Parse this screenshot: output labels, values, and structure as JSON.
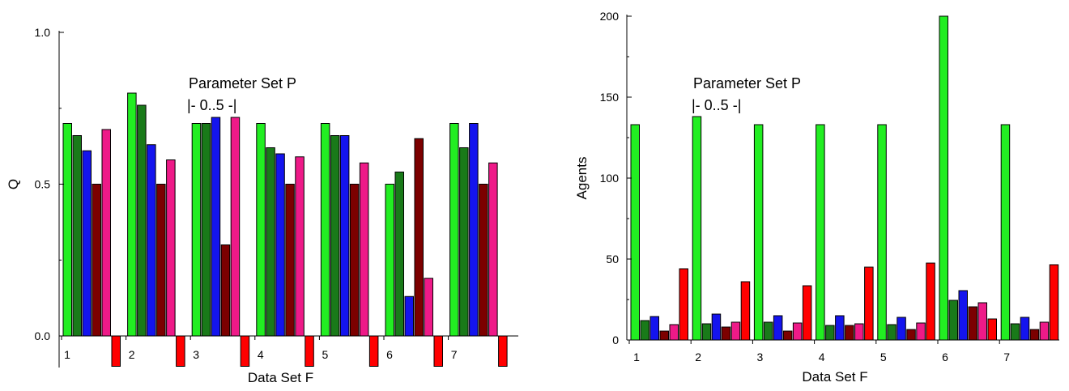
{
  "colors": {
    "light_green": "#22ee22",
    "dark_green": "#197a19",
    "blue": "#1414ee",
    "dark_red": "#7c0000",
    "pink": "#ee1a88",
    "red": "#ff0000"
  },
  "chart_data": [
    {
      "type": "bar",
      "xlabel": "Data Set F",
      "ylabel": "Q",
      "ylim": [
        0,
        1.0
      ],
      "yticks": [
        "0.0",
        "0.5",
        "1.0"
      ],
      "categories": [
        "1",
        "2",
        "3",
        "4",
        "5",
        "6",
        "7"
      ],
      "annotation": [
        "Parameter Set P",
        "|- 0..5 -|"
      ],
      "series": [
        {
          "values": [
            0.7,
            0.8,
            0.7,
            0.7,
            0.7,
            0.5,
            0.7
          ],
          "color": "light_green"
        },
        {
          "values": [
            0.66,
            0.76,
            0.7,
            0.62,
            0.66,
            0.54,
            0.62
          ],
          "color": "dark_green"
        },
        {
          "values": [
            0.61,
            0.63,
            0.72,
            0.6,
            0.66,
            0.13,
            0.7
          ],
          "color": "blue"
        },
        {
          "values": [
            0.5,
            0.5,
            0.3,
            0.5,
            0.5,
            0.65,
            0.5
          ],
          "color": "dark_red"
        },
        {
          "values": [
            0.68,
            0.58,
            0.72,
            0.59,
            0.57,
            0.19,
            0.57
          ],
          "color": "pink"
        },
        {
          "values": [
            -0.1,
            -0.1,
            -0.1,
            -0.1,
            -0.1,
            -0.1,
            -0.1
          ],
          "color": "red"
        }
      ]
    },
    {
      "type": "bar",
      "xlabel": "Data Set F",
      "ylabel": "Agents",
      "ylim": [
        0,
        200
      ],
      "yticks": [
        "0",
        "50",
        "100",
        "150",
        "200"
      ],
      "categories": [
        "1",
        "2",
        "3",
        "4",
        "5",
        "6",
        "7"
      ],
      "annotation": [
        "Parameter Set P",
        "|- 0..5 -|"
      ],
      "series": [
        {
          "values": [
            133,
            138,
            133,
            133,
            133,
            200,
            133
          ],
          "color": "light_green"
        },
        {
          "values": [
            12,
            10,
            11,
            9,
            9.5,
            24.5,
            10
          ],
          "color": "dark_green"
        },
        {
          "values": [
            14.5,
            16,
            15,
            15,
            14,
            30.5,
            14
          ],
          "color": "blue"
        },
        {
          "values": [
            5.5,
            8,
            5.5,
            9,
            6.5,
            20.5,
            6.5
          ],
          "color": "dark_red"
        },
        {
          "values": [
            9.5,
            11,
            10.5,
            10,
            10.5,
            23,
            11
          ],
          "color": "pink"
        },
        {
          "values": [
            44,
            36,
            33.5,
            45,
            47.5,
            13,
            46.5
          ],
          "color": "red"
        }
      ]
    }
  ]
}
